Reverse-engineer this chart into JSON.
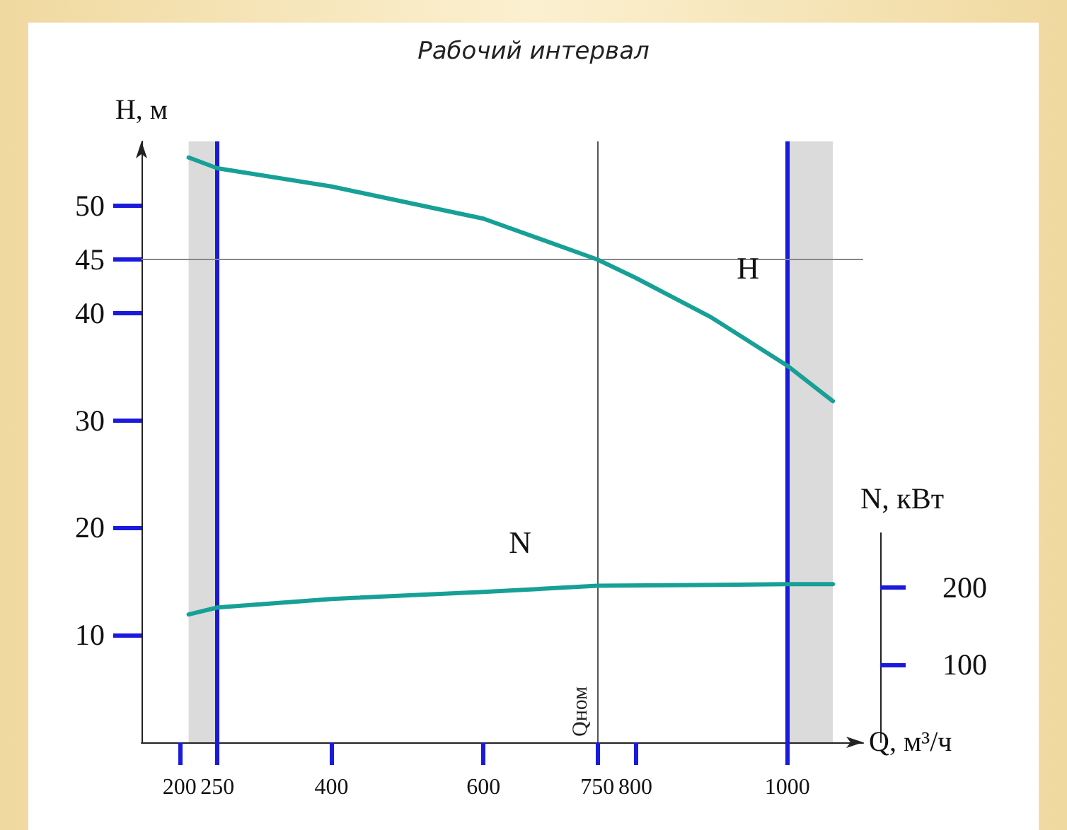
{
  "chart_data": {
    "type": "line",
    "xlabel": "Q, м³/ч",
    "ylabel": "H, м",
    "y2label": "N, кВт",
    "annotations": [
      "Рабочий интервал"
    ],
    "xlim": [
      150,
      1100
    ],
    "xticks": [
      200,
      250,
      400,
      600,
      750,
      800,
      1000
    ],
    "ylim": [
      0,
      56
    ],
    "yticks": [
      10,
      20,
      30,
      40,
      45,
      50
    ],
    "y2lim": [
      0,
      270
    ],
    "y2ticks": [
      100,
      200
    ],
    "grid": false,
    "legend": false,
    "marker": "none",
    "line_style": "solid",
    "series": [
      {
        "name": "H",
        "color": "#17a096",
        "x": [
          212,
          250,
          400,
          600,
          750,
          800,
          900,
          1000,
          1060
        ],
        "values": [
          54.5,
          53.5,
          51.8,
          48.8,
          45,
          43.3,
          39.6,
          35.1,
          31.8
        ]
      },
      {
        "name": "N",
        "color": "#17a096",
        "axis": "y2",
        "x": [
          212,
          250,
          400,
          600,
          750,
          1000,
          1060
        ],
        "values": [
          165,
          174,
          185,
          194,
          202,
          204,
          204
        ]
      }
    ],
    "ref_lines": [
      {
        "axis": "x",
        "value": 250,
        "color": "#1a1adc"
      },
      {
        "axis": "x",
        "value": 1000,
        "color": "#1a1adc"
      },
      {
        "axis": "x",
        "value": 750,
        "label": "Qном",
        "color": "#555555"
      },
      {
        "axis": "y",
        "value": 45,
        "color": "#888888"
      }
    ],
    "bands": [
      {
        "axis": "x",
        "from": 212,
        "to": 250,
        "color": "#b0b0b0"
      },
      {
        "axis": "x",
        "from": 1000,
        "to": 1060,
        "color": "#b0b0b0"
      }
    ]
  }
}
